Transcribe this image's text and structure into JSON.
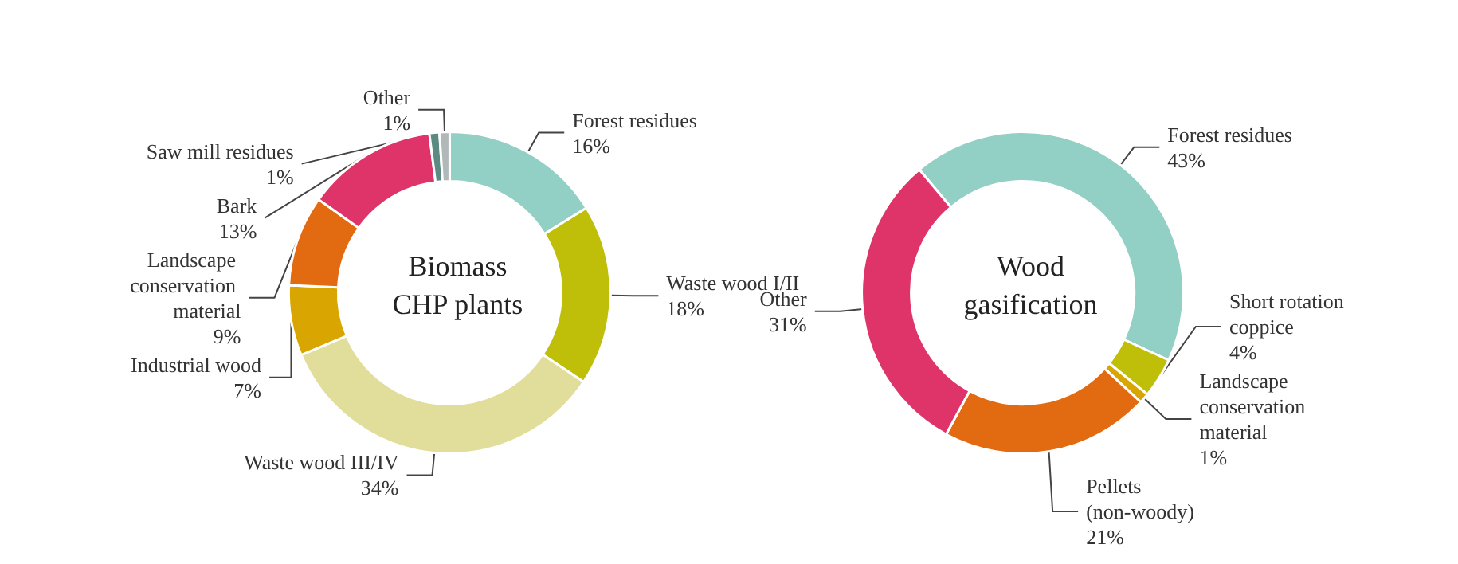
{
  "chart_data": [
    {
      "type": "donut",
      "title": "Biomass CHP plants",
      "categories": [
        "Forest residues",
        "Waste wood I/II",
        "Waste wood III/IV",
        "Industrial wood",
        "Landscape conservation material",
        "Bark",
        "Saw mill residues",
        "Other"
      ],
      "values": [
        16,
        18,
        34,
        7,
        9,
        13,
        1,
        1
      ],
      "value_labels": [
        "16%",
        "18%",
        "34%",
        "7%",
        "9%",
        "13%",
        "1%",
        "1%"
      ],
      "colors": [
        "#92cfc4",
        "#bfbf0a",
        "#e1dd9a",
        "#d9a500",
        "#e26a10",
        "#de3469",
        "#5a8a82",
        "#b0b8b8"
      ],
      "legend": false
    },
    {
      "type": "donut",
      "title": "Wood gasification",
      "categories": [
        "Forest residues",
        "Short rotation coppice",
        "Landscape conservation material",
        "Pellets (non-woody)",
        "Other"
      ],
      "values": [
        43,
        4,
        1,
        21,
        31
      ],
      "value_labels": [
        "43%",
        "4%",
        "1%",
        "21%",
        "31%"
      ],
      "colors": [
        "#92cfc4",
        "#bfbf0a",
        "#d9a500",
        "#e26a10",
        "#de3469"
      ],
      "legend": false
    }
  ]
}
